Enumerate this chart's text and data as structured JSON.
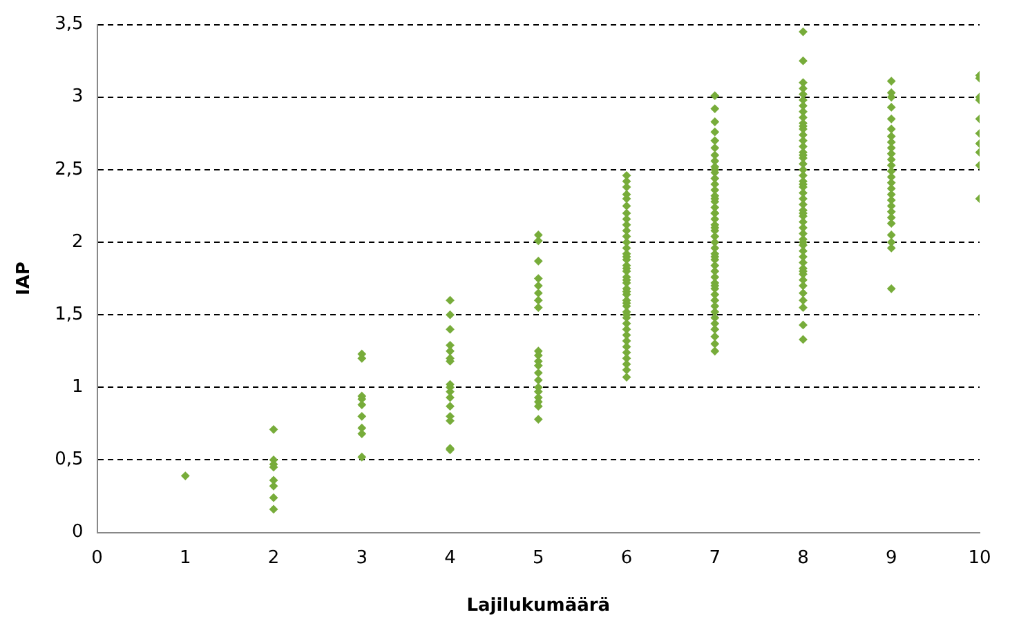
{
  "chart_data": {
    "type": "scatter",
    "xlabel": "Lajilukumäärä",
    "ylabel": "IAP",
    "xlim": [
      0,
      10
    ],
    "xticks": [
      0,
      1,
      2,
      3,
      4,
      5,
      6,
      7,
      8,
      9,
      10
    ],
    "ylim": [
      0,
      3.5
    ],
    "yticks": [
      0,
      {
        "value": 0.5,
        "label": "0,5"
      },
      1,
      {
        "value": 1.5,
        "label": "1,5"
      },
      2,
      {
        "value": 2.5,
        "label": "2,5"
      },
      3,
      {
        "value": 3.5,
        "label": "3,5"
      }
    ],
    "grid": "y",
    "legend": false,
    "marker": "diamond",
    "series": [
      {
        "color": "#77ac3a",
        "x": [
          1,
          2,
          2,
          2,
          2,
          2,
          2,
          2,
          2,
          3,
          3,
          3,
          3,
          3,
          3,
          3,
          3,
          3,
          4,
          4,
          4,
          4,
          4,
          4,
          4,
          4,
          4,
          4,
          4,
          4,
          4,
          4,
          4,
          4,
          5,
          5,
          5,
          5,
          5,
          5,
          5,
          5,
          5,
          5,
          5,
          5,
          5,
          5,
          5,
          5,
          5,
          5,
          5,
          5,
          6,
          6,
          6,
          6,
          6,
          6,
          6,
          6,
          6,
          6,
          6,
          6,
          6,
          6,
          6,
          6,
          6,
          6,
          6,
          6,
          6,
          6,
          6,
          6,
          6,
          6,
          6,
          6,
          6,
          6,
          6,
          6,
          6,
          6,
          6,
          6,
          6,
          6,
          6,
          6,
          6,
          7,
          7,
          7,
          7,
          7,
          7,
          7,
          7,
          7,
          7,
          7,
          7,
          7,
          7,
          7,
          7,
          7,
          7,
          7,
          7,
          7,
          7,
          7,
          7,
          7,
          7,
          7,
          7,
          7,
          7,
          7,
          7,
          7,
          7,
          7,
          7,
          7,
          7,
          7,
          7,
          7,
          7,
          7,
          7,
          7,
          7,
          8,
          8,
          8,
          8,
          8,
          8,
          8,
          8,
          8,
          8,
          8,
          8,
          8,
          8,
          8,
          8,
          8,
          8,
          8,
          8,
          8,
          8,
          8,
          8,
          8,
          8,
          8,
          8,
          8,
          8,
          8,
          8,
          8,
          8,
          8,
          8,
          8,
          8,
          8,
          8,
          8,
          8,
          8,
          8,
          8,
          8,
          8,
          8,
          8,
          9,
          9,
          9,
          9,
          9,
          9,
          9,
          9,
          9,
          9,
          9,
          9,
          9,
          9,
          9,
          9,
          9,
          9,
          9,
          9,
          9,
          9,
          9,
          9,
          9,
          9,
          10,
          10,
          10,
          10,
          10,
          10,
          10,
          10,
          10,
          10
        ],
        "values": [
          0.39,
          0.71,
          0.5,
          0.47,
          0.45,
          0.36,
          0.32,
          0.24,
          0.16,
          1.23,
          1.2,
          0.94,
          0.92,
          0.88,
          0.8,
          0.72,
          0.68,
          0.52,
          1.6,
          1.5,
          1.4,
          1.29,
          1.25,
          1.2,
          1.18,
          1.02,
          1.0,
          0.97,
          0.93,
          0.87,
          0.8,
          0.77,
          0.58,
          0.57,
          2.05,
          2.01,
          1.87,
          1.75,
          1.7,
          1.65,
          1.6,
          1.55,
          1.25,
          1.22,
          1.18,
          1.15,
          1.1,
          1.05,
          1.0,
          0.97,
          0.93,
          0.9,
          0.87,
          0.78,
          2.46,
          2.42,
          2.38,
          2.33,
          2.3,
          2.25,
          2.2,
          2.16,
          2.12,
          2.08,
          2.04,
          2.0,
          1.96,
          1.92,
          1.88,
          1.84,
          1.8,
          1.76,
          1.72,
          1.68,
          1.64,
          1.6,
          1.56,
          1.52,
          1.48,
          1.44,
          1.4,
          1.36,
          1.32,
          1.28,
          1.24,
          1.2,
          1.16,
          1.12,
          1.07,
          1.9,
          1.82,
          1.74,
          1.66,
          1.58,
          1.5,
          3.01,
          2.92,
          2.83,
          2.76,
          2.7,
          2.65,
          2.6,
          2.56,
          2.52,
          2.48,
          2.44,
          2.4,
          2.36,
          2.32,
          2.28,
          2.24,
          2.2,
          2.16,
          2.12,
          2.08,
          2.04,
          2.0,
          1.96,
          1.92,
          1.88,
          1.84,
          1.8,
          1.76,
          1.72,
          1.68,
          1.64,
          1.6,
          1.56,
          1.52,
          1.48,
          1.44,
          1.4,
          1.35,
          1.3,
          1.25,
          2.3,
          2.1,
          1.9,
          1.7,
          2.5,
          2.2,
          3.45,
          3.25,
          3.1,
          3.06,
          3.02,
          2.98,
          2.94,
          2.9,
          2.86,
          2.82,
          2.78,
          2.74,
          2.7,
          2.66,
          2.62,
          2.58,
          2.54,
          2.5,
          2.46,
          2.42,
          2.38,
          2.34,
          2.3,
          2.26,
          2.22,
          2.18,
          2.14,
          2.1,
          2.06,
          2.02,
          1.98,
          1.94,
          1.9,
          1.86,
          1.82,
          1.78,
          1.74,
          1.7,
          1.65,
          1.6,
          1.55,
          1.43,
          1.33,
          2.6,
          2.4,
          2.2,
          2.0,
          2.8,
          1.8,
          3.11,
          3.03,
          3.0,
          2.93,
          2.85,
          2.78,
          2.73,
          2.69,
          2.65,
          2.61,
          2.57,
          2.53,
          2.49,
          2.45,
          2.41,
          2.37,
          2.33,
          2.29,
          2.25,
          2.21,
          2.17,
          2.13,
          2.05,
          2.0,
          1.96,
          1.68,
          3.15,
          3.13,
          3.0,
          2.98,
          2.85,
          2.75,
          2.68,
          2.62,
          2.53,
          2.3
        ]
      }
    ]
  }
}
